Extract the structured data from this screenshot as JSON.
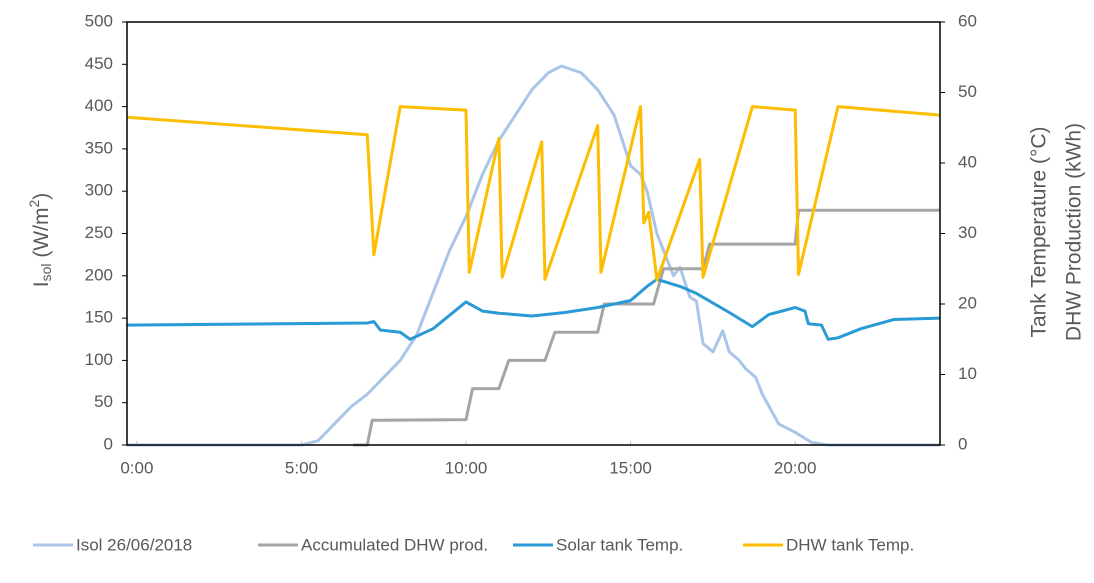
{
  "chart_data": {
    "type": "line",
    "y_label": {
      "main": "I",
      "sub": "sol",
      "unit": " (W/m",
      "sup": "2",
      "end": ")"
    },
    "y2_label": [
      "Tank Temperature (°C)",
      "DHW Production (kWh)"
    ],
    "xlim": [
      -0.3,
      24.4
    ],
    "xticks": [
      {
        "value": 0,
        "label": "0:00"
      },
      {
        "value": 5,
        "label": "5:00"
      },
      {
        "value": 10,
        "label": "10:00"
      },
      {
        "value": 15,
        "label": "15:00"
      },
      {
        "value": 20,
        "label": "20:00"
      }
    ],
    "ylim": [
      0,
      500
    ],
    "yticks": [
      0,
      50,
      100,
      150,
      200,
      250,
      300,
      350,
      400,
      450,
      500
    ],
    "y2lim": [
      0,
      60
    ],
    "y2ticks": [
      0,
      10,
      20,
      30,
      40,
      50,
      60
    ],
    "legend": "bottom",
    "series": [
      {
        "name": "Isol 26/06/2018",
        "color": "#a9c5e8",
        "x": [
          -0.3,
          5,
          5.5,
          6,
          6.5,
          7,
          7.5,
          8,
          8.5,
          9,
          9.5,
          10,
          10.5,
          11,
          11.5,
          12,
          12.5,
          12.9,
          13.5,
          14,
          14.5,
          15,
          15.3,
          15.5,
          15.8,
          16,
          16.3,
          16.5,
          16.8,
          17,
          17.2,
          17.5,
          17.8,
          18,
          18.3,
          18.5,
          18.8,
          19,
          19.5,
          20,
          20.5,
          21,
          24.4
        ],
        "values": [
          0,
          0,
          5,
          25,
          45,
          60,
          80,
          100,
          130,
          180,
          230,
          270,
          320,
          360,
          390,
          420,
          440,
          448,
          440,
          420,
          390,
          330,
          320,
          300,
          250,
          230,
          200,
          210,
          175,
          170,
          120,
          110,
          135,
          110,
          100,
          90,
          80,
          60,
          25,
          15,
          3,
          0,
          0
        ]
      },
      {
        "name": "Accumulated DHW prod.",
        "color": "#a5a5a5",
        "axis": "y2",
        "x": [
          6.57,
          7.0,
          7.15,
          10.0,
          10.2,
          11.0,
          11.3,
          12.4,
          12.7,
          14.0,
          14.2,
          15.7,
          16.0,
          17.2,
          17.4,
          20.0,
          20.1,
          24.4
        ],
        "values": [
          0,
          0,
          3.5,
          3.6,
          8,
          8,
          12,
          12,
          16,
          16,
          20,
          20,
          25,
          25,
          28.5,
          28.5,
          33.3,
          33.3
        ]
      },
      {
        "name": "Solar tank Temp.",
        "color": "#2a9ad5",
        "axis": "y2",
        "x": [
          -0.3,
          7.0,
          7.2,
          7.4,
          8.0,
          8.3,
          9.0,
          10.0,
          10.5,
          11.0,
          12.0,
          13.0,
          14.0,
          15.0,
          15.5,
          15.8,
          16.5,
          17.0,
          18.0,
          18.7,
          19.2,
          20.0,
          20.3,
          20.4,
          20.8,
          21.0,
          21.3,
          22.0,
          23.0,
          24.4
        ],
        "values": [
          17,
          17.3,
          17.5,
          16.3,
          16,
          15,
          16.5,
          20.3,
          19,
          18.7,
          18.3,
          18.8,
          19.5,
          20.5,
          22.5,
          23.5,
          22.5,
          21.5,
          18.8,
          16.8,
          18.5,
          19.5,
          19,
          17.2,
          17,
          15,
          15.2,
          16.5,
          17.8,
          18
        ]
      },
      {
        "name": "DHW tank Temp.",
        "color": "#fdbd00",
        "axis": "y2",
        "x": [
          -0.3,
          7.0,
          7.2,
          8.0,
          10.0,
          10.1,
          11.0,
          11.1,
          12.3,
          12.4,
          14.0,
          14.1,
          15.3,
          15.4,
          15.55,
          15.8,
          17.1,
          17.2,
          18.7,
          20.0,
          20.1,
          21.3,
          24.4
        ],
        "values": [
          46.5,
          44,
          27,
          48,
          47.5,
          24.5,
          43.5,
          23.8,
          43,
          23.5,
          45.3,
          24.5,
          48,
          31.5,
          33,
          23.4,
          40.5,
          23.8,
          48,
          47.5,
          24.2,
          48,
          46.8
        ]
      }
    ]
  }
}
